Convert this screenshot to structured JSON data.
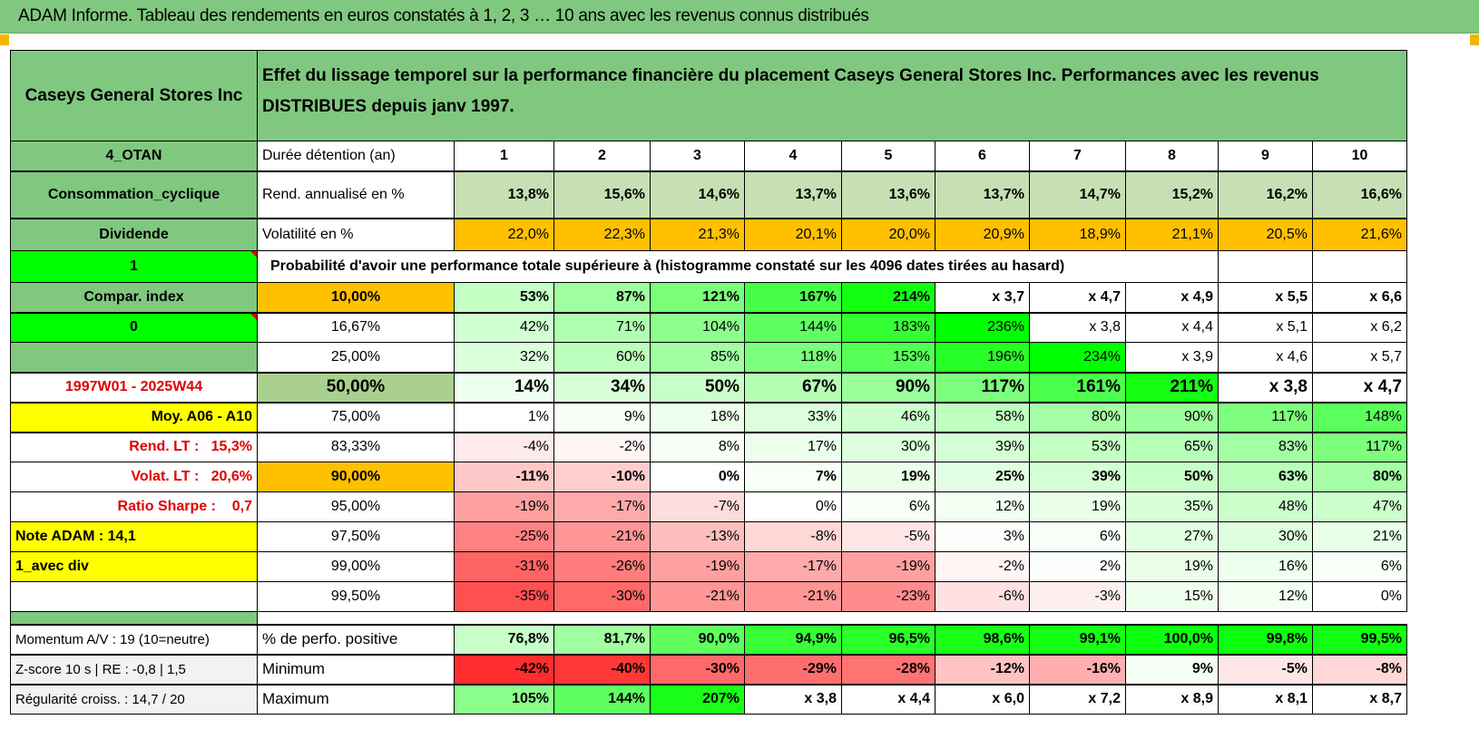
{
  "title": "ADAM Informe. Tableau des rendements en euros constatés à 1, 2, 3 … 10 ans avec les revenus connus distribués",
  "header": {
    "asset": "Caseys General Stores Inc",
    "description": "Effet du lissage temporel sur la performance financière du placement Caseys General Stores Inc. Performances avec les revenus DISTRIBUES depuis janv 1997."
  },
  "colors": {
    "header_green": "#80C880",
    "bright_green": "#00FF00",
    "orange": "#FFC000",
    "yellow": "#FFFF00",
    "light_green": "#C6E0B4",
    "red_text": "#E00000"
  },
  "stats_rows": [
    {
      "left": "4_OTAN",
      "label": "Durée détention (an)",
      "values": [
        "1",
        "2",
        "3",
        "4",
        "5",
        "6",
        "7",
        "8",
        "9",
        "10"
      ]
    },
    {
      "left": "Consommation_cyclique",
      "label": "Rend. annualisé en %",
      "values": [
        "13,8%",
        "15,6%",
        "14,6%",
        "13,7%",
        "13,6%",
        "13,7%",
        "14,7%",
        "15,2%",
        "16,2%",
        "16,6%"
      ]
    },
    {
      "left": "Dividende",
      "label": "Volatilité en %",
      "values": [
        "22,0%",
        "22,3%",
        "21,3%",
        "20,1%",
        "20,0%",
        "20,9%",
        "18,9%",
        "21,1%",
        "20,5%",
        "21,6%"
      ]
    }
  ],
  "prob_row": {
    "left": "1",
    "text": "Probabilité d'avoir une performance totale supérieure à (histogramme constaté sur les 4096 dates tirées au hasard)"
  },
  "quantile_rows": [
    {
      "left": "Compar. index",
      "threshold": "10,00%",
      "values": [
        "53%",
        "87%",
        "121%",
        "167%",
        "214%",
        "x 3,7",
        "x 4,7",
        "x 4,9",
        "x 5,5",
        "x 6,6"
      ]
    },
    {
      "left": "0",
      "threshold": "16,67%",
      "values": [
        "42%",
        "71%",
        "104%",
        "144%",
        "183%",
        "236%",
        "x 3,8",
        "x 4,4",
        "x 5,1",
        "x 6,2"
      ]
    },
    {
      "left": "",
      "threshold": "25,00%",
      "values": [
        "32%",
        "60%",
        "85%",
        "118%",
        "153%",
        "196%",
        "234%",
        "x 3,9",
        "x 4,6",
        "x 5,7"
      ]
    },
    {
      "left": "1997W01 - 2025W44",
      "threshold": "50,00%",
      "values": [
        "14%",
        "34%",
        "50%",
        "67%",
        "90%",
        "117%",
        "161%",
        "211%",
        "x 3,8",
        "x 4,7"
      ]
    },
    {
      "left": "Moy. A06 - A10",
      "threshold": "75,00%",
      "values": [
        "1%",
        "9%",
        "18%",
        "33%",
        "46%",
        "58%",
        "80%",
        "90%",
        "117%",
        "148%"
      ]
    },
    {
      "left": "Rend. LT :   15,3%",
      "threshold": "83,33%",
      "values": [
        "-4%",
        "-2%",
        "8%",
        "17%",
        "30%",
        "39%",
        "53%",
        "65%",
        "83%",
        "117%"
      ]
    },
    {
      "left": "Volat. LT :   20,6%",
      "threshold": "90,00%",
      "values": [
        "-11%",
        "-10%",
        "0%",
        "7%",
        "19%",
        "25%",
        "39%",
        "50%",
        "63%",
        "80%"
      ]
    },
    {
      "left": "Ratio Sharpe :    0,7",
      "threshold": "95,00%",
      "values": [
        "-19%",
        "-17%",
        "-7%",
        "0%",
        "6%",
        "12%",
        "19%",
        "35%",
        "48%",
        "47%"
      ]
    },
    {
      "left": "Note ADAM : 14,1",
      "threshold": "97,50%",
      "values": [
        "-25%",
        "-21%",
        "-13%",
        "-8%",
        "-5%",
        "3%",
        "6%",
        "27%",
        "30%",
        "21%"
      ]
    },
    {
      "left": "1_avec div",
      "threshold": "99,00%",
      "values": [
        "-31%",
        "-26%",
        "-19%",
        "-17%",
        "-19%",
        "-2%",
        "2%",
        "19%",
        "16%",
        "6%"
      ]
    },
    {
      "left": "",
      "threshold": "99,50%",
      "values": [
        "-35%",
        "-30%",
        "-21%",
        "-21%",
        "-23%",
        "-6%",
        "-3%",
        "15%",
        "12%",
        "0%"
      ]
    }
  ],
  "bottom_rows": [
    {
      "left": "Momentum A/V : 19 (10=neutre)",
      "label": "% de perfo. positive",
      "values": [
        "76,8%",
        "81,7%",
        "90,0%",
        "94,9%",
        "96,5%",
        "98,6%",
        "99,1%",
        "100,0%",
        "99,8%",
        "99,5%"
      ]
    },
    {
      "left": "Z-score 10 s | RE : -0,8 | 1,5",
      "label": "Minimum",
      "values": [
        "-42%",
        "-40%",
        "-30%",
        "-29%",
        "-28%",
        "-12%",
        "-16%",
        "9%",
        "-5%",
        "-8%"
      ]
    },
    {
      "left": "Régularité croiss. : 14,7 / 20",
      "label": "Maximum",
      "values": [
        "105%",
        "144%",
        "207%",
        "x 3,8",
        "x 4,4",
        "x 6,0",
        "x 7,2",
        "x 8,9",
        "x 8,1",
        "x 8,7"
      ]
    }
  ]
}
